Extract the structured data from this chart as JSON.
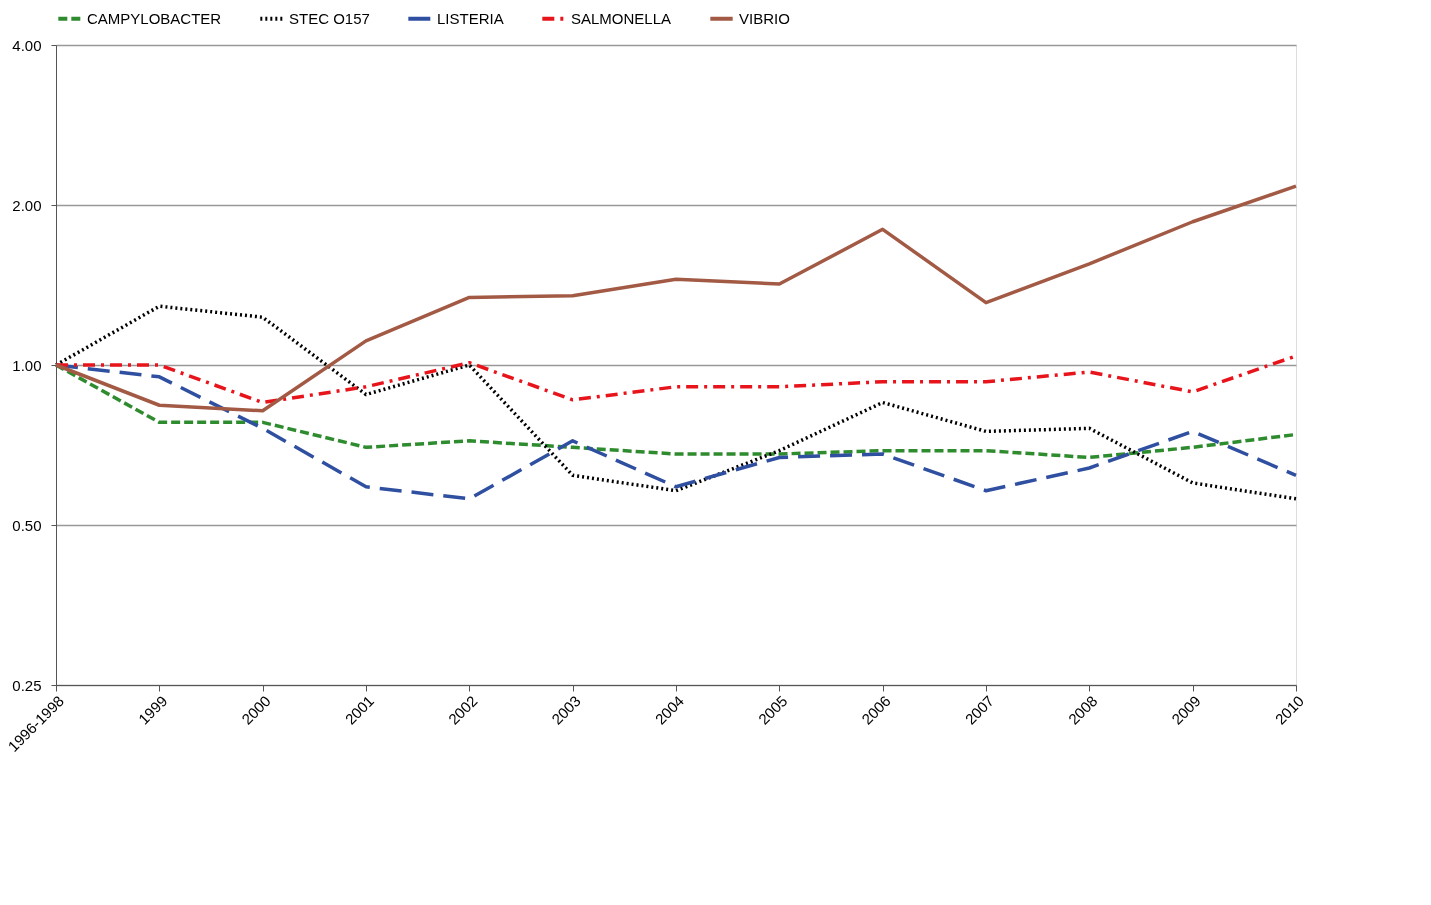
{
  "chart_data": {
    "type": "line",
    "categories": [
      "1996-1998",
      "1999",
      "2000",
      "2001",
      "2002",
      "2003",
      "2004",
      "2005",
      "2006",
      "2007",
      "2008",
      "2009",
      "2010"
    ],
    "series": [
      {
        "name": "CAMPYLOBACTER",
        "color": "#2e8b2e",
        "line_style": "dashed",
        "values": [
          1.0,
          0.78,
          0.78,
          0.7,
          0.72,
          0.7,
          0.68,
          0.68,
          0.69,
          0.69,
          0.67,
          0.7,
          0.74
        ]
      },
      {
        "name": "STEC O157",
        "color": "#000000",
        "line_style": "dotted",
        "values": [
          1.0,
          1.29,
          1.23,
          0.88,
          1.0,
          0.62,
          0.58,
          0.69,
          0.85,
          0.75,
          0.76,
          0.6,
          0.56
        ]
      },
      {
        "name": "LISTERIA",
        "color": "#2f4fa0",
        "line_style": "longdash",
        "values": [
          1.0,
          0.95,
          0.76,
          0.59,
          0.56,
          0.72,
          0.59,
          0.67,
          0.68,
          0.58,
          0.64,
          0.75,
          0.62
        ]
      },
      {
        "name": "SALMONELLA",
        "color": "#e8141c",
        "line_style": "dashdot",
        "values": [
          1.0,
          1.0,
          0.85,
          0.91,
          1.01,
          0.86,
          0.91,
          0.91,
          0.93,
          0.93,
          0.97,
          0.89,
          1.04
        ]
      },
      {
        "name": "VIBRIO",
        "color": "#a35a45",
        "line_style": "solid",
        "values": [
          1.0,
          0.84,
          0.82,
          1.11,
          1.34,
          1.35,
          1.45,
          1.42,
          1.8,
          1.31,
          1.55,
          1.86,
          2.17
        ]
      }
    ],
    "log": "y",
    "ylim": [
      0.25,
      4
    ],
    "yticks": [
      {
        "value": 0.25,
        "label": "0.25"
      },
      {
        "value": 0.5,
        "label": "0.50"
      },
      {
        "value": 1,
        "label": "1.00"
      },
      {
        "value": 2,
        "label": "2.00"
      },
      {
        "value": 4,
        "label": "4.00"
      }
    ],
    "grid": "y",
    "legend": "top",
    "marker": "none"
  }
}
